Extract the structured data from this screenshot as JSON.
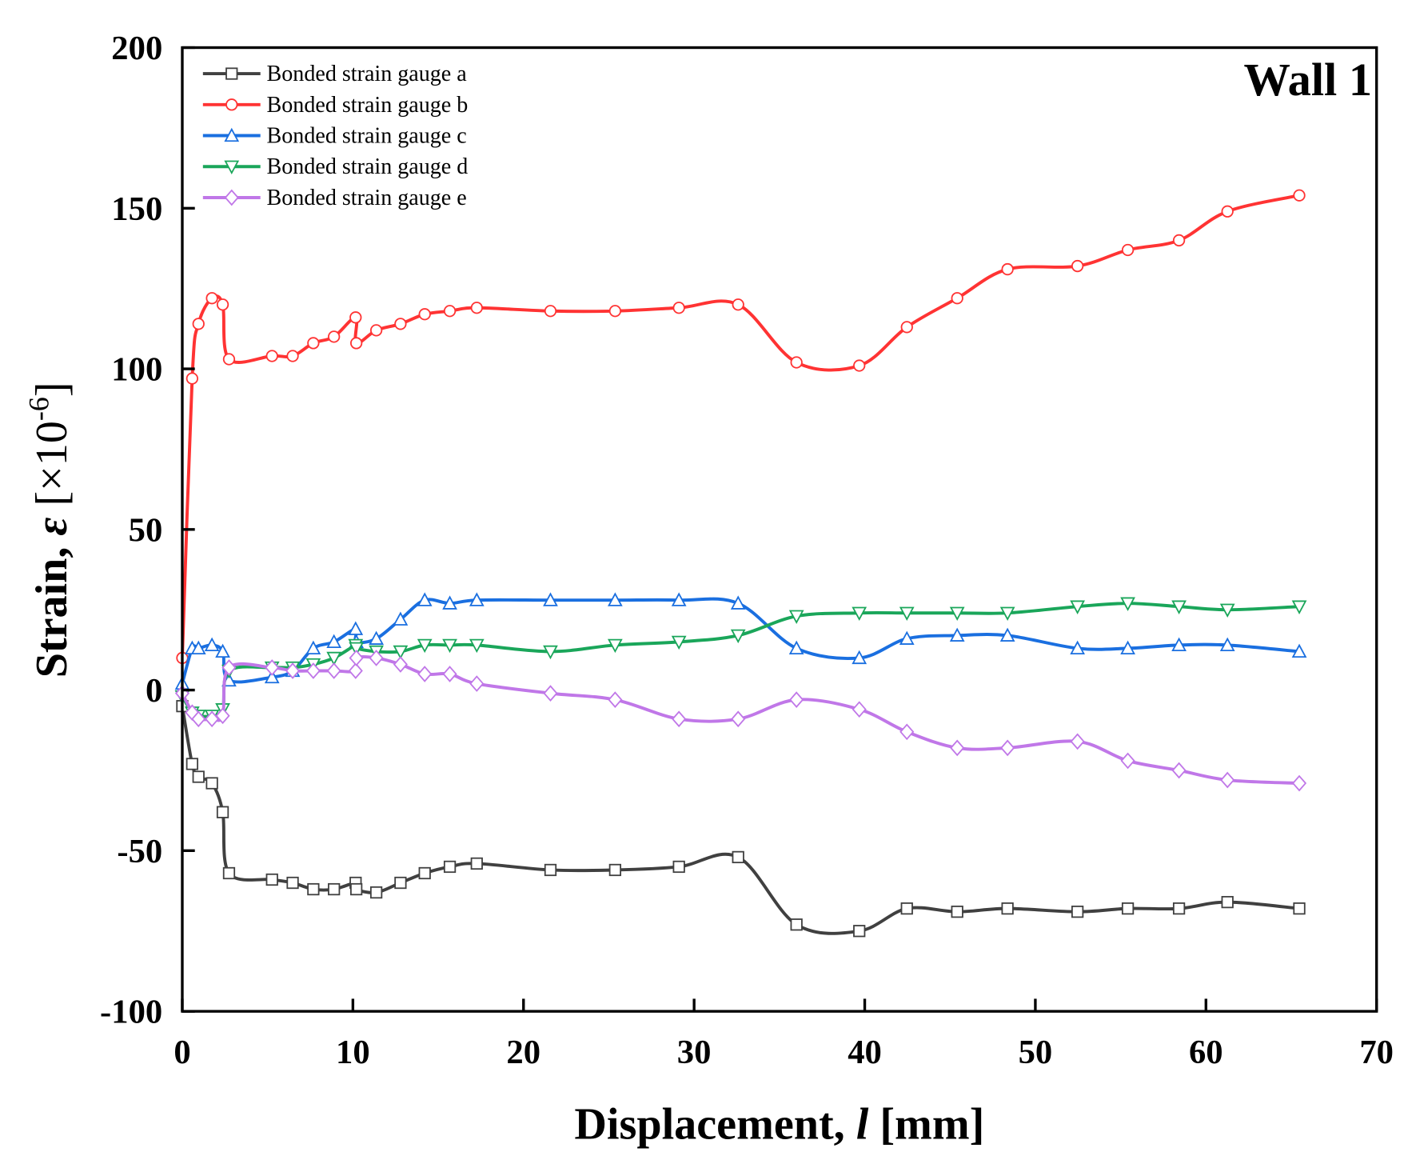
{
  "chart_data": {
    "type": "line",
    "title": "",
    "annotation": "Wall 1",
    "xlabel": "Displacement, l [mm]",
    "xlabel_parts": {
      "prefix": "Displacement, ",
      "var": "l",
      "suffix": " [mm]"
    },
    "ylabel": "Strain, ε [×10^-6]",
    "ylabel_parts": {
      "prefix": "Strain, ",
      "var": "ε",
      "unit": " [×10",
      "exp": "-6",
      "close": "]"
    },
    "xlim": [
      0,
      70
    ],
    "ylim": [
      -100,
      200
    ],
    "xticks": [
      "0",
      "10",
      "20",
      "30",
      "40",
      "50",
      "60",
      "70"
    ],
    "yticks": [
      "-100",
      "-50",
      "0",
      "50",
      "100",
      "150",
      "200"
    ],
    "grid": false,
    "legend_position": "top-left",
    "x": [
      0,
      0.58,
      0.95,
      1.74,
      2.37,
      2.74,
      5.26,
      6.47,
      7.68,
      8.89,
      10.16,
      10.2,
      11.37,
      12.79,
      14.21,
      15.68,
      17.26,
      21.58,
      25.37,
      29.11,
      32.58,
      36.0,
      39.68,
      42.47,
      45.42,
      48.37,
      52.47,
      55.42,
      58.42,
      61.26,
      65.47
    ],
    "series": [
      {
        "name": "Bonded strain gauge a",
        "color": "#404040",
        "marker": "square",
        "values": [
          -5,
          -23,
          -27,
          -29,
          -38,
          -57,
          -59,
          -60,
          -62,
          -62,
          -60,
          -62,
          -63,
          -60,
          -57,
          -55,
          -54,
          -56,
          -56,
          -55,
          -52,
          -73,
          -75,
          -68,
          -69,
          -68,
          -69,
          -68,
          -68,
          -66,
          -68
        ]
      },
      {
        "name": "Bonded strain gauge b",
        "color": "#ff3333",
        "marker": "circle",
        "values": [
          10,
          97,
          114,
          122,
          120,
          103,
          104,
          104,
          108,
          110,
          116,
          108,
          112,
          114,
          117,
          118,
          119,
          118,
          118,
          119,
          120,
          102,
          101,
          113,
          122,
          131,
          132,
          137,
          140,
          149,
          154
        ]
      },
      {
        "name": "Bonded strain gauge c",
        "color": "#1a6fe0",
        "marker": "triangle-up",
        "values": [
          2,
          13,
          13,
          14,
          12,
          3,
          4,
          6,
          13,
          15,
          19,
          15,
          16,
          22,
          28,
          27,
          28,
          28,
          28,
          28,
          27,
          13,
          10,
          16,
          17,
          17,
          13,
          13,
          14,
          14,
          12
        ]
      },
      {
        "name": "Bonded strain gauge d",
        "color": "#1aa65a",
        "marker": "triangle-down",
        "values": [
          -2,
          -7,
          -8,
          -8,
          -6,
          6,
          7,
          7,
          8,
          10,
          14,
          13,
          12,
          12,
          14,
          14,
          14,
          12,
          14,
          15,
          17,
          23,
          24,
          24,
          24,
          24,
          26,
          27,
          26,
          25,
          26
        ]
      },
      {
        "name": "Bonded strain gauge e",
        "color": "#c077e8",
        "marker": "diamond",
        "values": [
          -1,
          -7,
          -9,
          -9,
          -8,
          7,
          7,
          6,
          6,
          6,
          6,
          10,
          10,
          8,
          5,
          5,
          2,
          -1,
          -3,
          -9,
          -9,
          -3,
          -6,
          -13,
          -18,
          -18,
          -16,
          -22,
          -25,
          -28,
          -29
        ]
      }
    ]
  }
}
